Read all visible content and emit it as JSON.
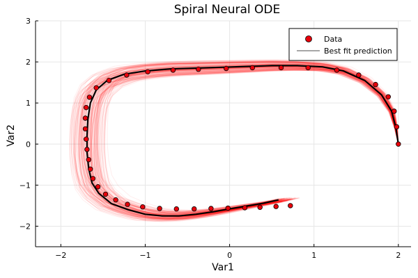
{
  "chart_data": {
    "type": "scatter",
    "title": "Spiral Neural ODE",
    "xlabel": "Var1",
    "ylabel": "Var2",
    "xlim": [
      -2.3,
      2.15
    ],
    "ylim": [
      -2.5,
      3.0
    ],
    "xticks": [
      -2,
      -1,
      0,
      1,
      2
    ],
    "yticks": [
      -2,
      -1,
      0,
      1,
      2,
      3
    ],
    "grid": true,
    "legend_position": "top-right",
    "series": [
      {
        "name": "Data",
        "kind": "scatter",
        "color": "#e8000b",
        "points": [
          [
            2.0,
            0.0
          ],
          [
            1.98,
            0.42
          ],
          [
            1.95,
            0.8
          ],
          [
            1.88,
            1.15
          ],
          [
            1.73,
            1.45
          ],
          [
            1.53,
            1.68
          ],
          [
            1.27,
            1.8
          ],
          [
            0.93,
            1.86
          ],
          [
            0.61,
            1.86
          ],
          [
            0.27,
            1.86
          ],
          [
            -0.04,
            1.84
          ],
          [
            -0.37,
            1.82
          ],
          [
            -0.67,
            1.8
          ],
          [
            -0.97,
            1.76
          ],
          [
            -1.22,
            1.68
          ],
          [
            -1.43,
            1.55
          ],
          [
            -1.58,
            1.37
          ],
          [
            -1.66,
            1.14
          ],
          [
            -1.7,
            0.89
          ],
          [
            -1.71,
            0.63
          ],
          [
            -1.71,
            0.37
          ],
          [
            -1.7,
            0.12
          ],
          [
            -1.69,
            -0.13
          ],
          [
            -1.67,
            -0.38
          ],
          [
            -1.65,
            -0.61
          ],
          [
            -1.62,
            -0.84
          ],
          [
            -1.56,
            -1.04
          ],
          [
            -1.47,
            -1.22
          ],
          [
            -1.35,
            -1.36
          ],
          [
            -1.21,
            -1.47
          ],
          [
            -1.03,
            -1.53
          ],
          [
            -0.83,
            -1.57
          ],
          [
            -0.63,
            -1.58
          ],
          [
            -0.42,
            -1.58
          ],
          [
            -0.22,
            -1.57
          ],
          [
            -0.02,
            -1.56
          ],
          [
            0.18,
            -1.55
          ],
          [
            0.36,
            -1.54
          ],
          [
            0.55,
            -1.52
          ],
          [
            0.72,
            -1.5
          ]
        ]
      },
      {
        "name": "Best fit prediction",
        "kind": "line",
        "color": "#000000",
        "points": [
          [
            2.0,
            0.0
          ],
          [
            1.97,
            0.4
          ],
          [
            1.92,
            0.8
          ],
          [
            1.8,
            1.2
          ],
          [
            1.6,
            1.55
          ],
          [
            1.35,
            1.78
          ],
          [
            1.1,
            1.88
          ],
          [
            0.8,
            1.91
          ],
          [
            0.5,
            1.91
          ],
          [
            0.2,
            1.89
          ],
          [
            -0.1,
            1.87
          ],
          [
            -0.4,
            1.85
          ],
          [
            -0.7,
            1.83
          ],
          [
            -1.0,
            1.78
          ],
          [
            -1.25,
            1.7
          ],
          [
            -1.45,
            1.55
          ],
          [
            -1.58,
            1.32
          ],
          [
            -1.65,
            1.0
          ],
          [
            -1.68,
            0.6
          ],
          [
            -1.69,
            0.2
          ],
          [
            -1.69,
            -0.2
          ],
          [
            -1.67,
            -0.6
          ],
          [
            -1.63,
            -0.95
          ],
          [
            -1.55,
            -1.2
          ],
          [
            -1.4,
            -1.45
          ],
          [
            -1.2,
            -1.6
          ],
          [
            -1.0,
            -1.71
          ],
          [
            -0.8,
            -1.75
          ],
          [
            -0.6,
            -1.75
          ],
          [
            -0.4,
            -1.71
          ],
          [
            -0.2,
            -1.65
          ],
          [
            0.0,
            -1.58
          ],
          [
            0.2,
            -1.51
          ],
          [
            0.4,
            -1.44
          ],
          [
            0.58,
            -1.36
          ]
        ]
      }
    ],
    "ensemble": {
      "description": "many faint red sampled trajectories around the best fit",
      "color": "#ff0000",
      "count": 160,
      "spread": 0.12
    }
  }
}
